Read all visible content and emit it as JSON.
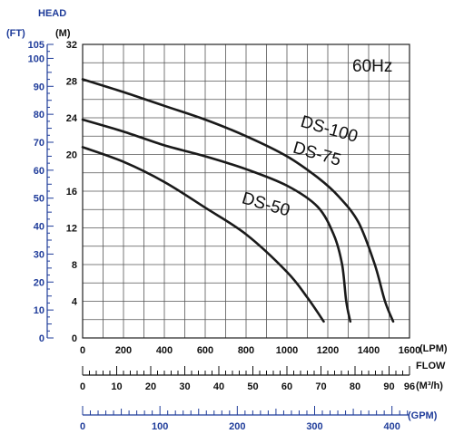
{
  "chart_data": {
    "type": "line",
    "title": "",
    "frequency_label": "60Hz",
    "head_label": "HEAD",
    "head_unit_ft": "(FT)",
    "head_unit_m": "(M)",
    "flow_label": "FLOW",
    "flow_unit_lpm": "(LPM)",
    "flow_unit_m3h": "(M³/h)",
    "flow_unit_gpm": "(GPM)",
    "x_lpm": {
      "range": [
        0,
        1600
      ],
      "ticks": [
        0,
        200,
        400,
        600,
        800,
        1000,
        1200,
        1400,
        1600
      ],
      "tick_labels": [
        "0",
        "200",
        "400",
        "600",
        "800",
        "1000",
        "1200",
        "1400",
        "1600"
      ]
    },
    "y_m": {
      "range": [
        0,
        32
      ],
      "ticks": [
        0,
        4,
        8,
        12,
        16,
        20,
        24,
        28,
        32
      ],
      "tick_labels": [
        "0",
        "4",
        "8",
        "12",
        "16",
        "20",
        "24",
        "28",
        "32"
      ]
    },
    "y_ft": {
      "range": [
        0,
        105
      ],
      "ticks": [
        0,
        10,
        20,
        30,
        40,
        50,
        60,
        70,
        80,
        90,
        100,
        105
      ],
      "tick_labels": [
        "0",
        "10",
        "20",
        "30",
        "40",
        "50",
        "60",
        "70",
        "80",
        "90",
        "100",
        "105"
      ]
    },
    "x_m3h": {
      "range": [
        0,
        96
      ],
      "ticks": [
        0,
        10,
        20,
        30,
        40,
        50,
        60,
        70,
        80,
        90,
        96
      ],
      "tick_labels": [
        "0",
        "10",
        "20",
        "30",
        "40",
        "50",
        "60",
        "70",
        "80",
        "90",
        "96"
      ]
    },
    "x_gpm": {
      "range": [
        0,
        422.7
      ],
      "ticks": [
        0,
        100,
        200,
        300,
        400
      ],
      "tick_labels": [
        "0",
        "100",
        "200",
        "300",
        "400"
      ]
    },
    "grid": true,
    "series": [
      {
        "name": "DS-100",
        "label_at": [
          1200,
          22.2
        ],
        "points": [
          [
            0,
            28.2
          ],
          [
            200,
            26.8
          ],
          [
            400,
            25.3
          ],
          [
            600,
            23.8
          ],
          [
            800,
            22.0
          ],
          [
            1000,
            19.8
          ],
          [
            1150,
            17.5
          ],
          [
            1250,
            15.5
          ],
          [
            1350,
            12.6
          ],
          [
            1430,
            8.0
          ],
          [
            1480,
            4.0
          ],
          [
            1520,
            1.8
          ]
        ]
      },
      {
        "name": "DS-75",
        "label_at": [
          1140,
          19.5
        ],
        "points": [
          [
            0,
            23.8
          ],
          [
            200,
            22.5
          ],
          [
            400,
            21.0
          ],
          [
            600,
            19.8
          ],
          [
            800,
            18.4
          ],
          [
            1000,
            16.6
          ],
          [
            1150,
            14.3
          ],
          [
            1230,
            11.2
          ],
          [
            1270,
            8.0
          ],
          [
            1290,
            4.0
          ],
          [
            1310,
            1.8
          ]
        ]
      },
      {
        "name": "DS-50",
        "label_at": [
          890,
          14.0
        ],
        "points": [
          [
            0,
            20.8
          ],
          [
            200,
            19.2
          ],
          [
            400,
            17.0
          ],
          [
            600,
            14.2
          ],
          [
            800,
            11.3
          ],
          [
            1000,
            7.2
          ],
          [
            1100,
            4.4
          ],
          [
            1180,
            1.8
          ]
        ]
      }
    ]
  }
}
